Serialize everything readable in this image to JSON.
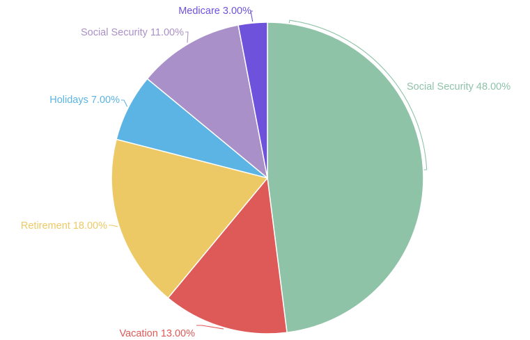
{
  "chart_data": {
    "type": "pie",
    "title": "",
    "labels": [
      "Social Security",
      "Vacation",
      "Retirement",
      "Holidays",
      "Social Security",
      "Medicare"
    ],
    "values": [
      48,
      13,
      18,
      7,
      11,
      3
    ],
    "value_labels": [
      "48.00%",
      "13.00%",
      "18.00%",
      "7.00%",
      "11.00%",
      "3.00%"
    ],
    "colors": [
      "#8fc3a7",
      "#dd5a58",
      "#edc966",
      "#5bb4e4",
      "#aa90c8",
      "#6e52dc"
    ],
    "label_texts": [
      "Social Security 48.00%",
      "Vacation 13.00%",
      "Retirement 18.00%",
      "Holidays 7.00%",
      "Social Security 11.00%",
      "Medicare 3.00%"
    ],
    "start_angle": "12 o'clock",
    "direction": "clockwise",
    "legend": "none"
  }
}
